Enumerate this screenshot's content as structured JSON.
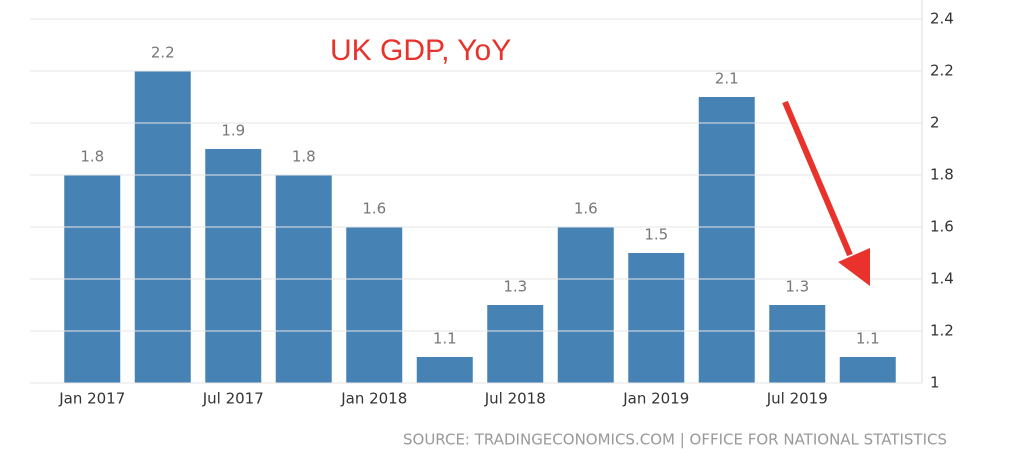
{
  "chart_data": {
    "type": "bar",
    "title": "UK GDP, YoY",
    "source": "SOURCE: TRADINGECONOMICS.COM | OFFICE FOR NATIONAL STATISTICS",
    "categories": [
      "Jan 2017",
      null,
      "Jul 2017",
      null,
      "Jan 2018",
      null,
      "Jul 2018",
      null,
      "Jan 2019",
      null,
      "Jul 2019",
      null
    ],
    "values": [
      1.8,
      2.2,
      1.9,
      1.8,
      1.6,
      1.1,
      1.3,
      1.6,
      1.5,
      2.1,
      1.3,
      1.1
    ],
    "color": "#4682b4",
    "ylim": [
      1,
      2.4
    ],
    "yticks": [
      1,
      1.2,
      1.4,
      1.6,
      1.8,
      2,
      2.2,
      2.4
    ],
    "grid": true
  }
}
